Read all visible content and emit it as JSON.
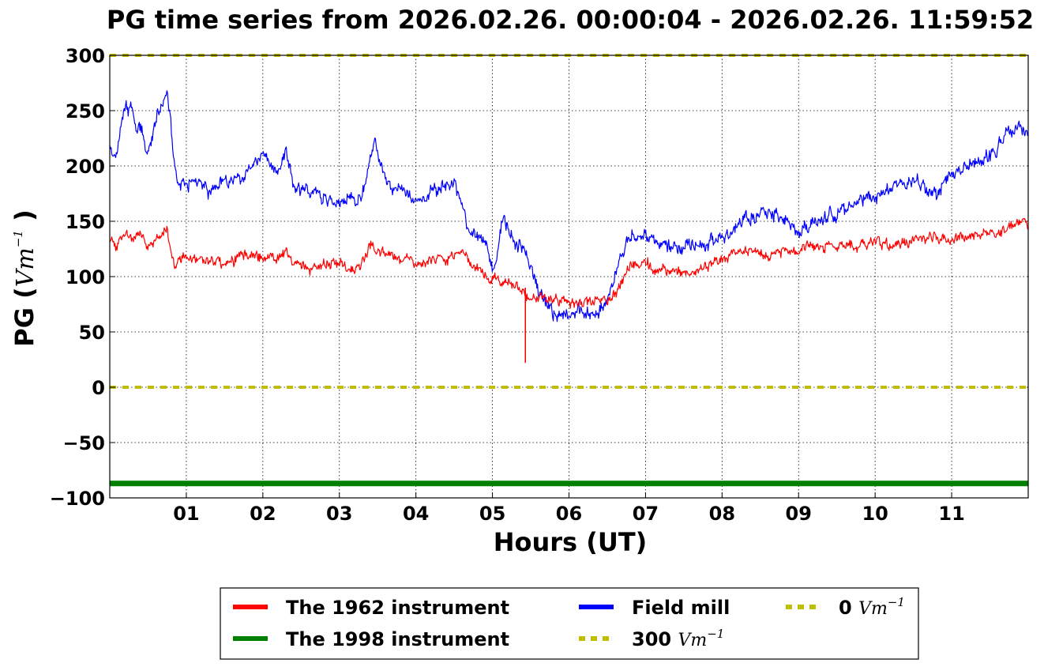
{
  "chart_data": {
    "type": "line",
    "title": "PG time series from 2026.02.26. 00:00:04 - 2026.02.26. 11:59:52",
    "xlabel": "Hours (UT)",
    "ylabel_prefix": "PG (",
    "ylabel_unit": "Vm",
    "ylabel_exp": "−1",
    "ylabel_suffix": " )",
    "xlim": [
      0,
      12
    ],
    "ylim": [
      -100,
      300
    ],
    "grid": true,
    "legend_placement": "bottom-center",
    "x_ticks": [
      {
        "value": 1,
        "label": "01"
      },
      {
        "value": 2,
        "label": "02"
      },
      {
        "value": 3,
        "label": "03"
      },
      {
        "value": 4,
        "label": "04"
      },
      {
        "value": 5,
        "label": "05"
      },
      {
        "value": 6,
        "label": "06"
      },
      {
        "value": 7,
        "label": "07"
      },
      {
        "value": 8,
        "label": "08"
      },
      {
        "value": 9,
        "label": "09"
      },
      {
        "value": 10,
        "label": "10"
      },
      {
        "value": 11,
        "label": "11"
      }
    ],
    "y_ticks": [
      {
        "value": 300,
        "label": "300"
      },
      {
        "value": 250,
        "label": "250"
      },
      {
        "value": 200,
        "label": "200"
      },
      {
        "value": 150,
        "label": "150"
      },
      {
        "value": 100,
        "label": "100"
      },
      {
        "value": 50,
        "label": "50"
      },
      {
        "value": 0,
        "label": "0"
      },
      {
        "value": -50,
        "label": "−50"
      },
      {
        "value": -100,
        "label": "−100"
      }
    ],
    "series": [
      {
        "name": "The 1962 instrument",
        "color": "#ff0000",
        "style": "solid",
        "noise": 6,
        "x": [
          0,
          0.1,
          0.2,
          0.3,
          0.4,
          0.5,
          0.6,
          0.7,
          0.75,
          0.8,
          0.85,
          0.9,
          1.0,
          1.2,
          1.5,
          1.7,
          1.9,
          2.0,
          2.2,
          2.3,
          2.4,
          2.6,
          2.8,
          3.0,
          3.2,
          3.3,
          3.4,
          3.5,
          3.7,
          3.9,
          4.0,
          4.2,
          4.4,
          4.6,
          4.7,
          4.8,
          5.0,
          5.2,
          5.4,
          5.5,
          5.7,
          6.0,
          6.3,
          6.5,
          6.6,
          6.7,
          6.8,
          7.0,
          7.2,
          7.5,
          7.8,
          8.0,
          8.3,
          8.5,
          8.8,
          9.0,
          9.2,
          9.5,
          9.8,
          10.0,
          10.2,
          10.4,
          10.6,
          11.0,
          11.5,
          11.7,
          11.9,
          12.0
        ],
        "y": [
          135,
          128,
          140,
          135,
          138,
          125,
          132,
          140,
          145,
          125,
          110,
          115,
          118,
          115,
          112,
          118,
          120,
          115,
          118,
          124,
          110,
          108,
          110,
          112,
          106,
          112,
          130,
          125,
          118,
          115,
          112,
          115,
          115,
          125,
          112,
          105,
          98,
          95,
          88,
          82,
          80,
          78,
          77,
          80,
          85,
          95,
          110,
          112,
          105,
          103,
          110,
          118,
          125,
          120,
          122,
          125,
          128,
          128,
          130,
          133,
          127,
          133,
          135,
          135,
          138,
          142,
          150,
          145
        ]
      },
      {
        "name": "Field mill",
        "color": "#0000ff",
        "style": "solid",
        "noise": 8,
        "x": [
          0,
          0.05,
          0.1,
          0.2,
          0.3,
          0.35,
          0.4,
          0.5,
          0.55,
          0.6,
          0.7,
          0.75,
          0.8,
          0.85,
          0.9,
          1.0,
          1.2,
          1.3,
          1.5,
          1.7,
          1.9,
          2.0,
          2.1,
          2.2,
          2.3,
          2.4,
          2.5,
          2.7,
          2.9,
          3.0,
          3.2,
          3.3,
          3.45,
          3.5,
          3.6,
          3.7,
          3.8,
          3.9,
          4.0,
          4.2,
          4.4,
          4.5,
          4.6,
          4.7,
          4.8,
          4.9,
          5.0,
          5.1,
          5.15,
          5.2,
          5.3,
          5.4,
          5.5,
          5.6,
          5.7,
          5.8,
          5.95,
          6.1,
          6.3,
          6.4,
          6.5,
          6.6,
          6.7,
          6.8,
          7.0,
          7.3,
          7.5,
          7.8,
          8.0,
          8.2,
          8.3,
          8.5,
          8.8,
          9.0,
          9.2,
          9.4,
          9.6,
          9.8,
          10.0,
          10.2,
          10.5,
          10.8,
          11.0,
          11.2,
          11.5,
          11.7,
          11.8,
          11.9,
          12.0
        ],
        "y": [
          225,
          205,
          215,
          255,
          250,
          230,
          235,
          215,
          225,
          240,
          260,
          265,
          235,
          195,
          185,
          185,
          188,
          178,
          185,
          190,
          205,
          210,
          200,
          195,
          215,
          185,
          178,
          175,
          165,
          170,
          168,
          172,
          220,
          215,
          190,
          178,
          182,
          175,
          168,
          175,
          180,
          185,
          165,
          140,
          140,
          130,
          105,
          140,
          155,
          140,
          130,
          125,
          110,
          85,
          75,
          68,
          62,
          70,
          65,
          72,
          78,
          100,
          125,
          135,
          138,
          125,
          128,
          130,
          135,
          145,
          150,
          158,
          155,
          140,
          148,
          155,
          160,
          170,
          175,
          180,
          185,
          175,
          195,
          200,
          210,
          225,
          235,
          240,
          225
        ]
      },
      {
        "name": "The 1998 instrument",
        "color": "#008000",
        "style": "solid",
        "noise": 0,
        "x": [
          0,
          12
        ],
        "y": [
          -87,
          -87
        ]
      }
    ],
    "spike": {
      "series": "The 1962 instrument",
      "x": 5.43,
      "y_from": 90,
      "y_to": 22
    },
    "reference_lines": [
      {
        "name": "300",
        "value": 300,
        "color": "#bfbf00",
        "style": "dotted"
      },
      {
        "name": "0",
        "value": 0,
        "color": "#bfbf00",
        "style": "dotted"
      }
    ],
    "legend": [
      {
        "label": "The 1962 instrument",
        "unit": "",
        "exp": "",
        "color": "#ff0000",
        "style": "solid"
      },
      {
        "label": "The 1998 instrument",
        "unit": "",
        "exp": "",
        "color": "#008000",
        "style": "solid"
      },
      {
        "label": "Field mill",
        "unit": "",
        "exp": "",
        "color": "#0000ff",
        "style": "solid"
      },
      {
        "label": "300 ",
        "unit": "Vm",
        "exp": "−1",
        "color": "#bfbf00",
        "style": "dotted"
      },
      {
        "label": "0 ",
        "unit": "Vm",
        "exp": "−1",
        "color": "#bfbf00",
        "style": "dotted"
      }
    ]
  }
}
